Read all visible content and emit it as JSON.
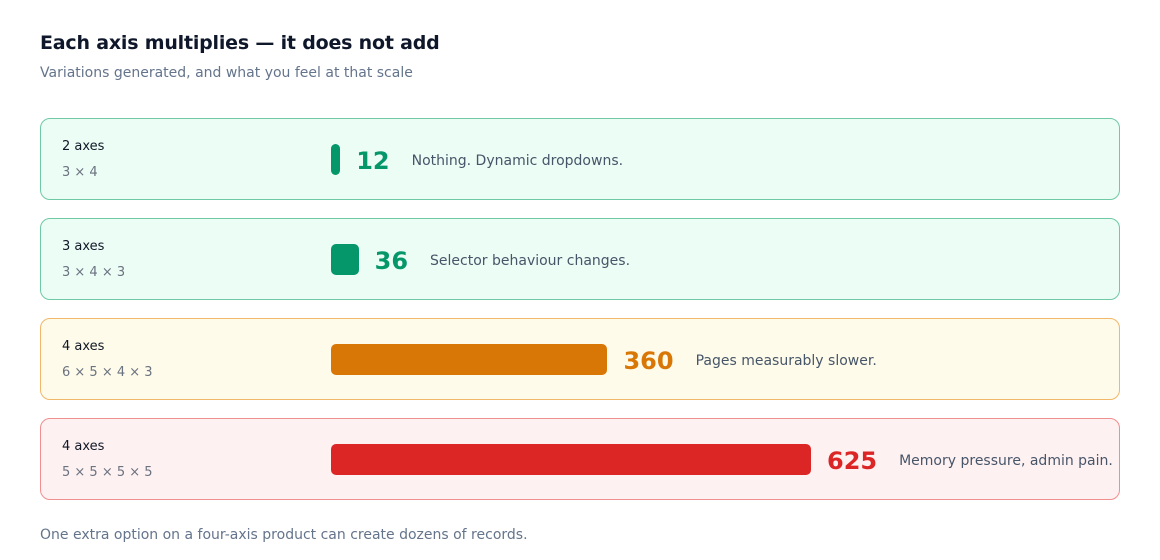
{
  "header": {
    "title": "Each axis multiplies — it does not add",
    "subtitle": "Variations generated, and what you feel at that scale"
  },
  "footer": {
    "text": "One extra option on a four-axis product can create dozens of records."
  },
  "chart_data": {
    "type": "bar",
    "orientation": "horizontal",
    "title": "Each axis multiplies — it does not add",
    "subtitle": "Variations generated, and what you feel at that scale",
    "rows": [
      {
        "axes": "2 axes",
        "formula": "3 × 4",
        "value": 12,
        "label": "12",
        "note": "Nothing. Dynamic dropdowns.",
        "color": "#059669",
        "bg": "#ecfdf5",
        "border": "#6fc9a4"
      },
      {
        "axes": "3 axes",
        "formula": "3 × 4 × 3",
        "value": 36,
        "label": "36",
        "note": "Selector behaviour changes.",
        "color": "#059669",
        "bg": "#ecfdf5",
        "border": "#6fc9a4"
      },
      {
        "axes": "4 axes",
        "formula": "6 × 5 × 4 × 3",
        "value": 360,
        "label": "360",
        "note": "Pages measurably slower.",
        "color": "#d97706",
        "bg": "#fefbea",
        "border": "#f0b86a"
      },
      {
        "axes": "4 axes",
        "formula": "5 × 5 × 5 × 5",
        "value": 625,
        "label": "625",
        "note": "Memory pressure, admin pain.",
        "color": "#dc2626",
        "bg": "#fef1f1",
        "border": "#ef8f8f"
      }
    ],
    "footer": "One extra option on a four-axis product can create dozens of records."
  }
}
